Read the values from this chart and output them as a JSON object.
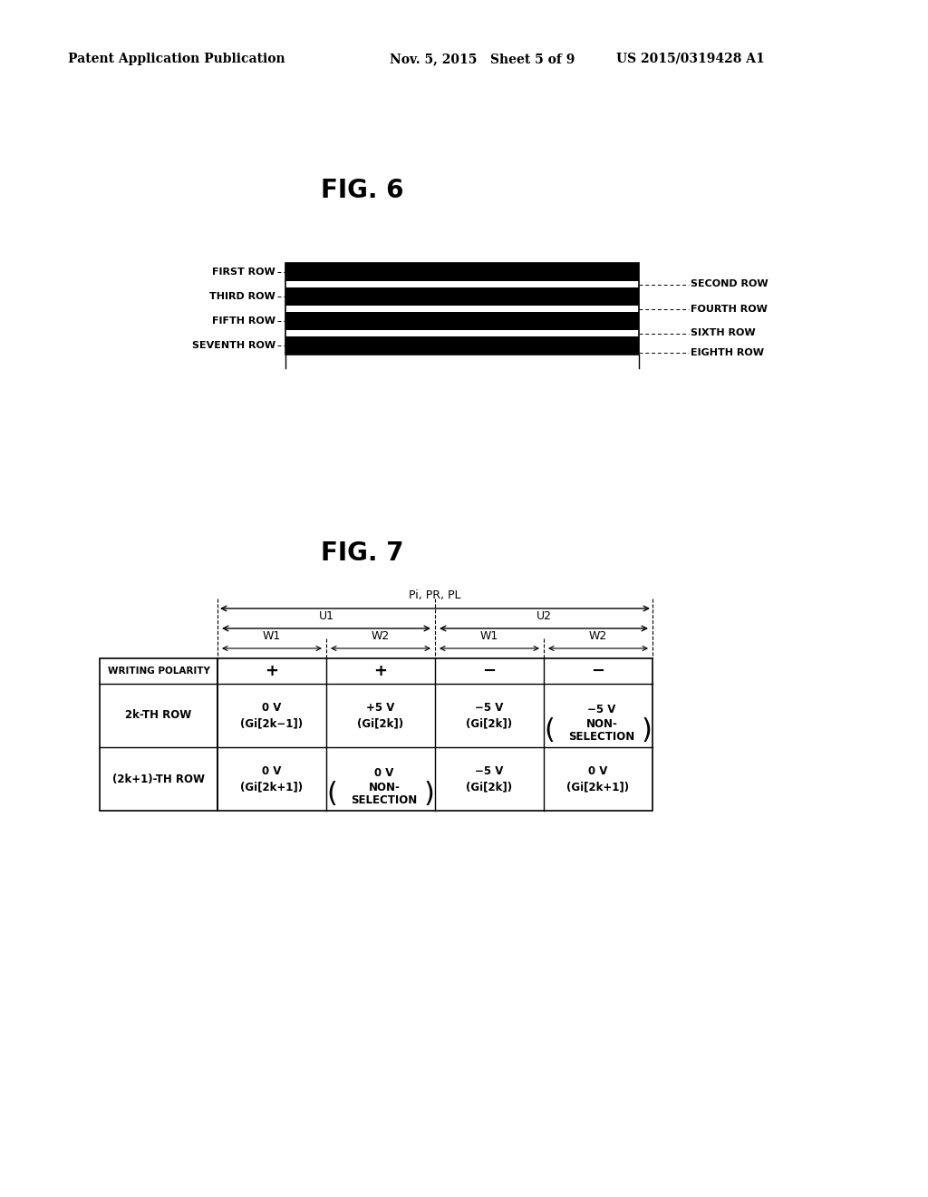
{
  "header_left": "Patent Application Publication",
  "header_mid": "Nov. 5, 2015   Sheet 5 of 9",
  "header_right": "US 2015/0319428 A1",
  "fig6_title": "FIG. 6",
  "fig7_title": "FIG. 7",
  "fig6_left_labels": [
    "FIRST ROW",
    "THIRD ROW",
    "FIFTH ROW",
    "SEVENTH ROW"
  ],
  "fig6_right_labels": [
    "SECOND ROW",
    "FOURTH ROW",
    "SIXTH ROW",
    "EIGHTH ROW"
  ],
  "fig7_row1_label": "2k-TH ROW",
  "fig7_row1_c1": "0 V\n(Gi[2k−1])",
  "fig7_row1_c2": "+5 V\n(Gi[2k])",
  "fig7_row1_c3": "−5 V\n(Gi[2k])",
  "fig7_row1_c4_line1": "−5 V",
  "fig7_row1_c4_line2": "NON-\nSELECTION",
  "fig7_row2_label": "(2k+1)-TH ROW",
  "fig7_row2_c1": "0 V\n(Gi[2k+1])",
  "fig7_row2_c2_line1": "0 V",
  "fig7_row2_c2_line2": "NON-\nSELECTION",
  "fig7_row2_c3": "−5 V\n(Gi[2k])",
  "fig7_row2_c4": "0 V\n(Gi[2k+1])",
  "background": "#ffffff",
  "text_color": "#000000"
}
